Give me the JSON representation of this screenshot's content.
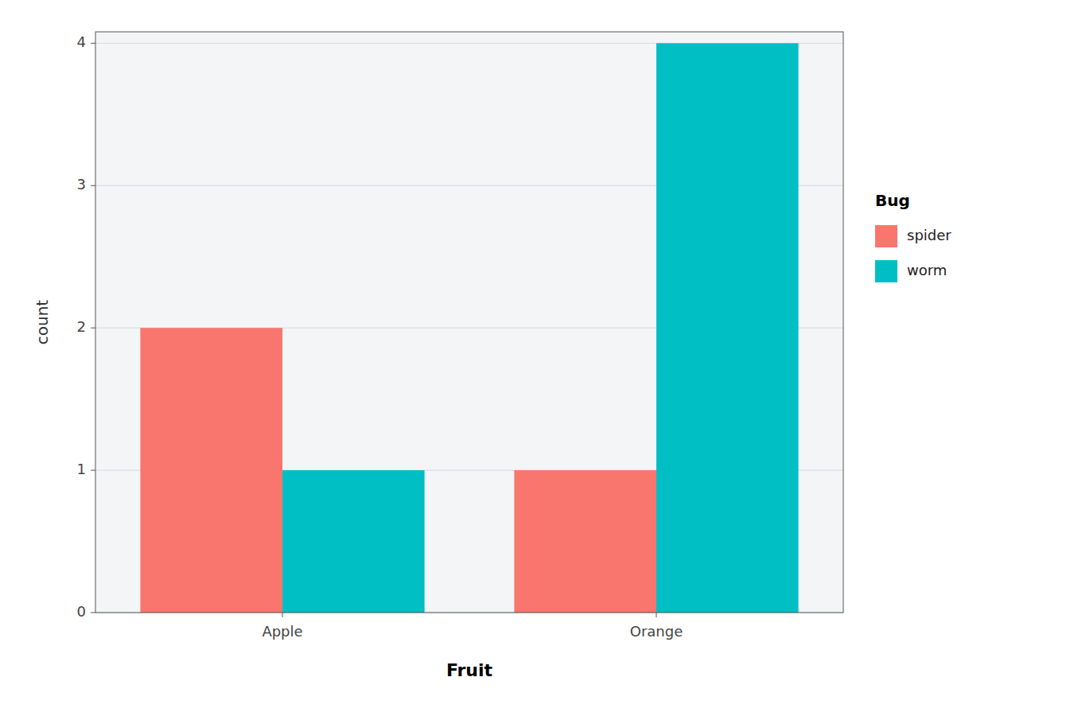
{
  "chart_data": {
    "type": "bar",
    "categories": [
      "Apple",
      "Orange"
    ],
    "series": [
      {
        "name": "spider",
        "color": "#F8766D",
        "values": [
          2,
          1
        ]
      },
      {
        "name": "worm",
        "color": "#00BFC4",
        "values": [
          1,
          4
        ]
      }
    ],
    "xlabel": "Fruit",
    "ylabel": "count",
    "legend_title": "Bug",
    "ylim": [
      0,
      4.08
    ],
    "yticks": [
      0,
      1,
      2,
      3,
      4
    ],
    "grid": true,
    "legend": "right"
  }
}
